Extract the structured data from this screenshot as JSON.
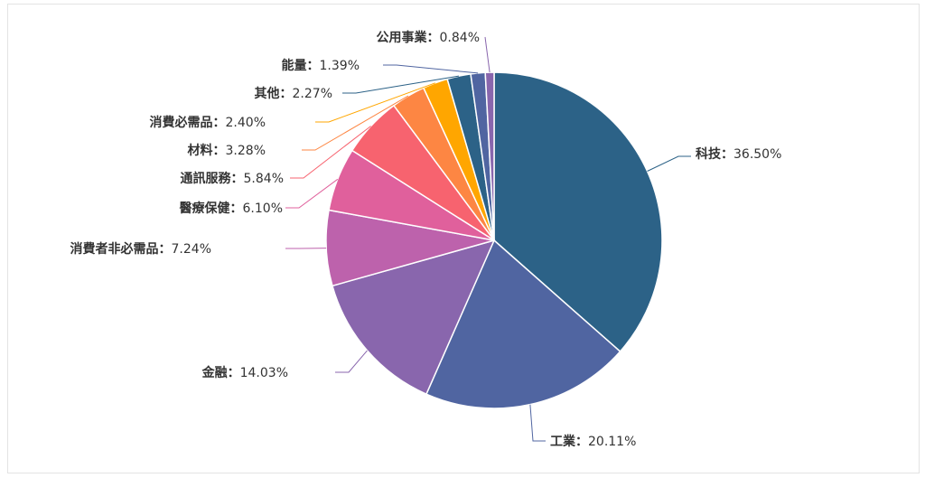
{
  "chart_data": {
    "type": "pie",
    "title": "",
    "separator": "：",
    "slices": [
      {
        "name": "科技",
        "value": 36.5,
        "label": "36.50%",
        "color": "#2c6287"
      },
      {
        "name": "工業",
        "value": 20.11,
        "label": "20.11%",
        "color": "#5065a1"
      },
      {
        "name": "金融",
        "value": 14.03,
        "label": "14.03%",
        "color": "#8966ad"
      },
      {
        "name": "消費者非必需品",
        "value": 7.24,
        "label": "7.24%",
        "color": "#bd62ac"
      },
      {
        "name": "醫療保健",
        "value": 6.1,
        "label": "6.10%",
        "color": "#e0609c"
      },
      {
        "name": "通訊服務",
        "value": 5.84,
        "label": "5.84%",
        "color": "#f7636f"
      },
      {
        "name": "材料",
        "value": 3.28,
        "label": "3.28%",
        "color": "#fd8643"
      },
      {
        "name": "消費必需品",
        "value": 2.4,
        "label": "2.40%",
        "color": "#ffa600"
      },
      {
        "name": "其他",
        "value": 2.27,
        "label": "2.27%",
        "color": "#2c6287"
      },
      {
        "name": "能量",
        "value": 1.39,
        "label": "1.39%",
        "color": "#5065a1"
      },
      {
        "name": "公用事業",
        "value": 0.84,
        "label": "0.84%",
        "color": "#8966ad"
      }
    ]
  }
}
